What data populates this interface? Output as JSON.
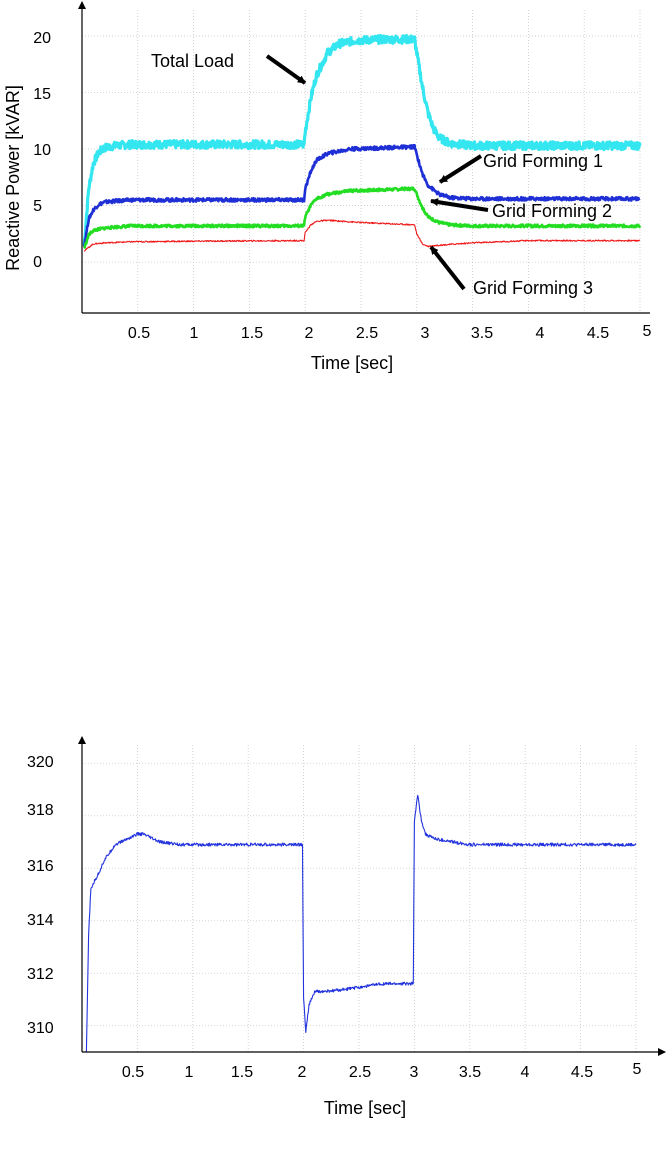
{
  "chart_data": [
    {
      "type": "line",
      "title": "",
      "xlabel": "Time [sec]",
      "ylabel": "Reactive Power  [kVAR]",
      "xlim": [
        0,
        5
      ],
      "ylim": [
        -4.5,
        23
      ],
      "x_ticks": [
        0.5,
        1,
        1.5,
        2,
        2.5,
        3,
        3.5,
        4,
        4.5,
        5
      ],
      "y_ticks": [
        0,
        5,
        10,
        15,
        20
      ],
      "grid": true,
      "series": [
        {
          "name": "Total Load",
          "color": "#33e6f0",
          "noise": 0.35,
          "x": [
            0.02,
            0.06,
            0.1,
            0.15,
            0.2,
            0.3,
            0.45,
            1.0,
            1.99,
            2.0,
            2.05,
            2.1,
            2.2,
            2.3,
            2.45,
            2.7,
            2.98,
            3.0,
            3.05,
            3.1,
            3.15,
            3.2,
            3.3,
            3.5,
            5.0
          ],
          "y": [
            1.5,
            6.5,
            8.7,
            9.7,
            10.1,
            10.3,
            10.4,
            10.4,
            10.4,
            11.5,
            14.5,
            16.5,
            18.5,
            19.3,
            19.6,
            19.7,
            19.7,
            18.5,
            15.5,
            13.2,
            11.8,
            11.0,
            10.5,
            10.3,
            10.3
          ]
        },
        {
          "name": "Grid Forming 1",
          "color": "#1f2fd6",
          "noise": 0.15,
          "x": [
            0.02,
            0.06,
            0.1,
            0.15,
            0.2,
            0.3,
            0.45,
            1.0,
            1.99,
            2.0,
            2.05,
            2.1,
            2.2,
            2.4,
            2.98,
            3.0,
            3.05,
            3.1,
            3.2,
            3.3,
            3.5,
            5.0
          ],
          "y": [
            1.5,
            3.8,
            4.6,
            5.1,
            5.3,
            5.4,
            5.5,
            5.5,
            5.5,
            6.5,
            8.0,
            9.0,
            9.6,
            10.0,
            10.2,
            9.5,
            7.8,
            6.8,
            6.0,
            5.7,
            5.6,
            5.6
          ]
        },
        {
          "name": "Grid Forming 2",
          "color": "#22dd22",
          "noise": 0.12,
          "x": [
            0.02,
            0.06,
            0.1,
            0.2,
            0.3,
            0.45,
            1.0,
            1.99,
            2.0,
            2.05,
            2.1,
            2.2,
            2.4,
            2.98,
            3.0,
            3.05,
            3.1,
            3.2,
            3.3,
            3.5,
            5.0
          ],
          "y": [
            1.2,
            2.4,
            2.8,
            3.0,
            3.1,
            3.2,
            3.2,
            3.2,
            4.0,
            5.0,
            5.6,
            6.0,
            6.3,
            6.5,
            6.0,
            4.8,
            4.0,
            3.5,
            3.3,
            3.2,
            3.2
          ]
        },
        {
          "name": "Grid Forming 3",
          "color": "#f01818",
          "noise": 0.06,
          "x": [
            0.02,
            0.1,
            0.2,
            0.45,
            1.0,
            1.99,
            2.0,
            2.05,
            2.1,
            2.2,
            2.5,
            2.98,
            3.0,
            3.05,
            3.1,
            3.2,
            3.5,
            4.0,
            5.0
          ],
          "y": [
            1.0,
            1.6,
            1.7,
            1.8,
            1.85,
            1.9,
            2.6,
            3.3,
            3.6,
            3.7,
            3.5,
            3.3,
            2.5,
            1.6,
            1.4,
            1.5,
            1.7,
            1.9,
            1.9
          ]
        }
      ],
      "annotations": [
        "Total Load",
        "Grid Forming 1",
        "Grid Forming 2",
        "Grid Forming 3"
      ]
    },
    {
      "type": "line",
      "title": "",
      "xlabel": "Time [sec]",
      "ylabel": "",
      "xlim": [
        0,
        5
      ],
      "ylim": [
        309,
        321
      ],
      "x_ticks": [
        0.5,
        1,
        1.5,
        2,
        2.5,
        3,
        3.5,
        4,
        4.5,
        5
      ],
      "y_ticks": [
        310,
        312,
        314,
        316,
        318,
        320
      ],
      "grid": true,
      "series": [
        {
          "color": "#2233dd",
          "noise": 0.06,
          "x": [
            0.04,
            0.06,
            0.08,
            0.1,
            0.15,
            0.2,
            0.3,
            0.4,
            0.5,
            0.55,
            0.7,
            0.9,
            1.0,
            1.2,
            1.5,
            1.99,
            2.0,
            2.02,
            2.05,
            2.1,
            2.2,
            2.4,
            2.7,
            2.99,
            3.0,
            3.03,
            3.06,
            3.1,
            3.2,
            3.5,
            4.0,
            5.0
          ],
          "y": [
            309.0,
            313.5,
            315.2,
            315.4,
            315.8,
            316.3,
            316.9,
            317.1,
            317.3,
            317.3,
            317.0,
            316.9,
            316.9,
            316.9,
            316.9,
            316.9,
            311.0,
            309.8,
            310.8,
            311.3,
            311.3,
            311.4,
            311.6,
            311.6,
            317.8,
            318.8,
            317.9,
            317.3,
            317.1,
            316.9,
            316.9,
            316.9
          ]
        }
      ]
    }
  ]
}
